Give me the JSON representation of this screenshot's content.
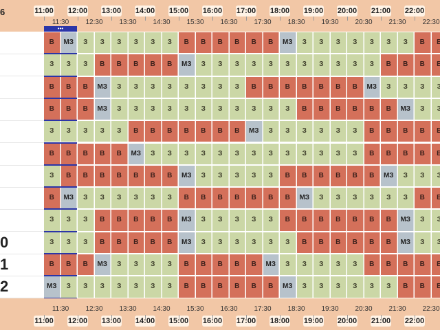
{
  "corner_label": "6",
  "hours": [
    "11:00",
    "12:00",
    "13:00",
    "14:00",
    "15:00",
    "16:00",
    "17:00",
    "18:00",
    "19:00",
    "20:00",
    "21:00",
    "22:00"
  ],
  "half_hours": [
    "11:30",
    "12:30",
    "13:30",
    "14:30",
    "15:30",
    "16:30",
    "17:30",
    "18:30",
    "19:30",
    "20:30",
    "21:30",
    "22:30"
  ],
  "current_slot_marker": "•••",
  "row_labels": [
    "",
    "",
    "",
    "",
    "",
    "",
    "",
    "",
    "",
    "0",
    "1",
    "2"
  ],
  "rows": [
    [
      "В",
      "МЗ",
      "З",
      "З",
      "З",
      "З",
      "З",
      "З",
      "В",
      "В",
      "В",
      "В",
      "В",
      "В",
      "МЗ",
      "З",
      "З",
      "З",
      "З",
      "З",
      "З",
      "З",
      "В",
      "В"
    ],
    [
      "З",
      "З",
      "З",
      "В",
      "В",
      "В",
      "В",
      "В",
      "МЗ",
      "З",
      "З",
      "З",
      "З",
      "З",
      "З",
      "З",
      "З",
      "З",
      "З",
      "З",
      "В",
      "В",
      "В",
      "В"
    ],
    [
      "В",
      "В",
      "В",
      "МЗ",
      "З",
      "З",
      "З",
      "З",
      "З",
      "З",
      "З",
      "З",
      "В",
      "В",
      "В",
      "В",
      "В",
      "В",
      "В",
      "МЗ",
      "З",
      "З",
      "З",
      "З"
    ],
    [
      "В",
      "В",
      "В",
      "МЗ",
      "З",
      "З",
      "З",
      "З",
      "З",
      "З",
      "З",
      "З",
      "З",
      "З",
      "З",
      "В",
      "В",
      "В",
      "В",
      "В",
      "В",
      "МЗ",
      "З",
      "З"
    ],
    [
      "З",
      "З",
      "З",
      "З",
      "З",
      "В",
      "В",
      "В",
      "В",
      "В",
      "В",
      "В",
      "МЗ",
      "З",
      "З",
      "З",
      "З",
      "З",
      "З",
      "В",
      "В",
      "В",
      "В",
      "В"
    ],
    [
      "В",
      "В",
      "В",
      "В",
      "В",
      "МЗ",
      "З",
      "З",
      "З",
      "З",
      "З",
      "З",
      "З",
      "З",
      "З",
      "З",
      "З",
      "З",
      "З",
      "В",
      "В",
      "В",
      "В",
      "В"
    ],
    [
      "З",
      "В",
      "В",
      "В",
      "В",
      "В",
      "В",
      "В",
      "МЗ",
      "З",
      "З",
      "З",
      "З",
      "З",
      "В",
      "В",
      "В",
      "В",
      "В",
      "В",
      "МЗ",
      "З",
      "З",
      "З"
    ],
    [
      "В",
      "МЗ",
      "З",
      "З",
      "З",
      "З",
      "З",
      "З",
      "В",
      "В",
      "В",
      "В",
      "В",
      "В",
      "В",
      "МЗ",
      "З",
      "З",
      "З",
      "З",
      "З",
      "З",
      "В",
      "В"
    ],
    [
      "З",
      "З",
      "З",
      "В",
      "В",
      "В",
      "В",
      "В",
      "МЗ",
      "З",
      "З",
      "З",
      "З",
      "З",
      "В",
      "В",
      "В",
      "В",
      "В",
      "В",
      "В",
      "МЗ",
      "З",
      "З"
    ],
    [
      "З",
      "З",
      "З",
      "В",
      "В",
      "В",
      "В",
      "В",
      "МЗ",
      "З",
      "З",
      "З",
      "З",
      "З",
      "З",
      "В",
      "В",
      "В",
      "В",
      "В",
      "В",
      "МЗ",
      "З",
      "З"
    ],
    [
      "В",
      "В",
      "В",
      "МЗ",
      "З",
      "З",
      "З",
      "З",
      "В",
      "В",
      "В",
      "В",
      "В",
      "МЗ",
      "З",
      "З",
      "З",
      "З",
      "З",
      "В",
      "В",
      "В",
      "В",
      "В"
    ],
    [
      "МЗ",
      "З",
      "З",
      "З",
      "З",
      "З",
      "З",
      "З",
      "В",
      "В",
      "В",
      "В",
      "В",
      "В",
      "МЗ",
      "З",
      "З",
      "З",
      "З",
      "З",
      "З",
      "В",
      "В",
      "В"
    ]
  ],
  "colors": {
    "V": "#d4705a",
    "Z": "#cbd7a6",
    "MZ": "#b7c2cb",
    "timebar": "#f2c7a6",
    "marker": "#2b35a8"
  }
}
